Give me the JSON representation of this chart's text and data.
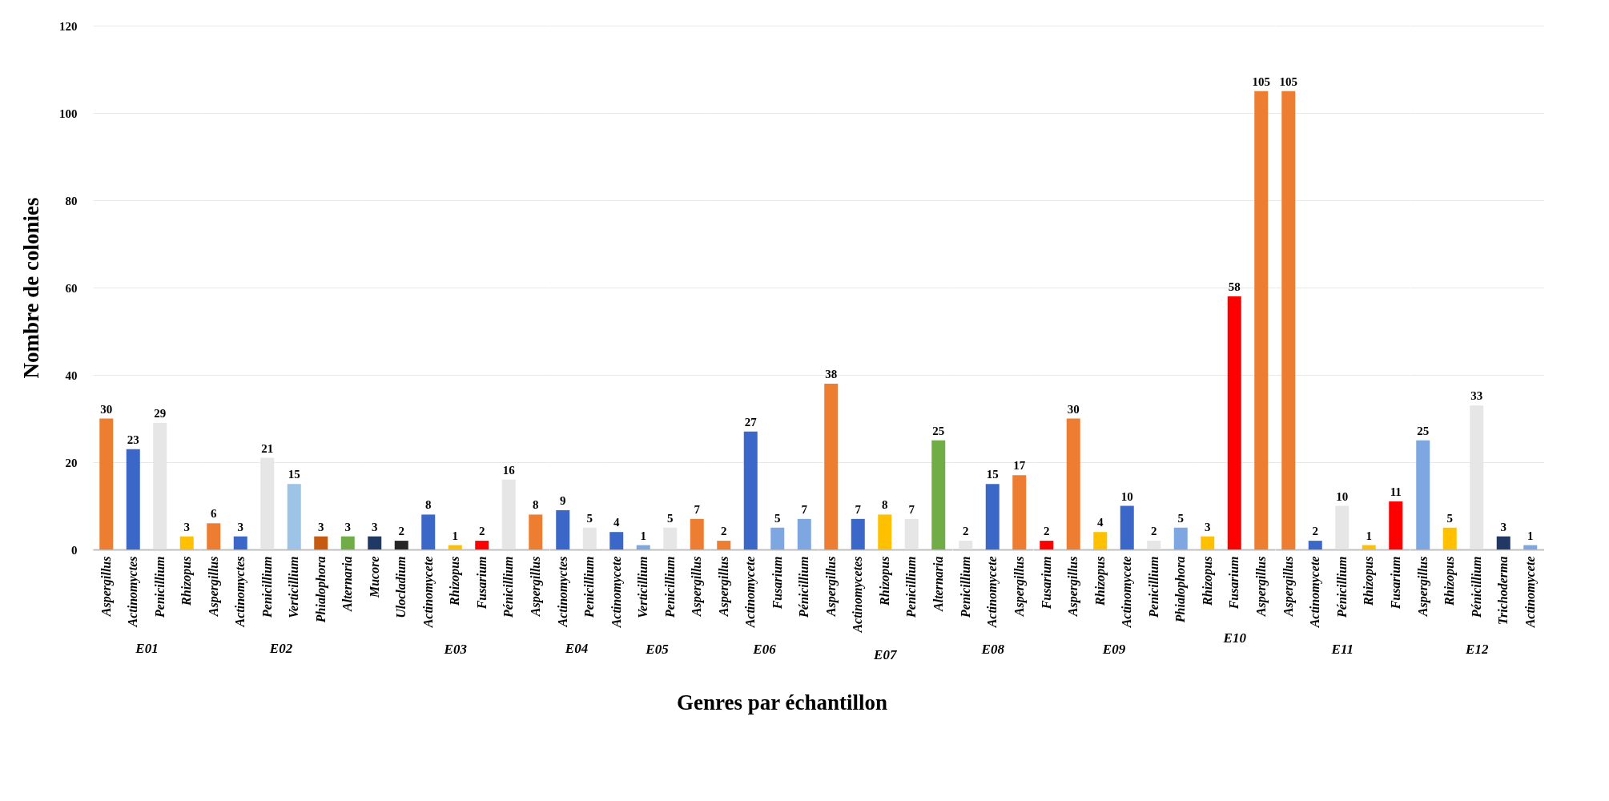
{
  "chart_data": [
    {
      "type": "bar",
      "ylabel": "Nombre de colonies",
      "xlabel": "E01",
      "categories": [
        "Aspergillus",
        "Actinomyctes",
        "Penicillium",
        "Rhizopus"
      ],
      "values": [
        30,
        23,
        29,
        3
      ],
      "colors": [
        "#ed7d31",
        "#3b67c9",
        "#e7e6e6",
        "#ffc000"
      ],
      "data_labels": true,
      "ylim": [
        0,
        120
      ],
      "yticks": [
        0,
        20,
        40,
        60,
        80,
        100,
        120
      ],
      "grid": "y",
      "annotations": [
        "Genres par échantillon"
      ]
    },
    {
      "type": "bar",
      "xlabel": "E02",
      "categories": [
        "Aspergillus",
        "Actinomyctes",
        "Penicillium",
        "Verticillium",
        "Phialophora",
        "Alternaria"
      ],
      "values": [
        6,
        3,
        21,
        15,
        3,
        3
      ],
      "colors": [
        "#ed7d31",
        "#3b67c9",
        "#e7e6e6",
        "#9dc3e6",
        "#c55a11",
        "#70ad47"
      ],
      "data_labels": true,
      "ylim": [
        0,
        120
      ],
      "yticks": [
        0,
        20,
        40,
        60,
        80,
        100,
        120
      ],
      "grid": "y",
      "tick_labels": "x"
    },
    {
      "type": "bar",
      "xlabel": "E03",
      "categories": [
        "Mucore",
        "Ulocladium",
        "Actinomycete",
        "Rhizopus",
        "Fusarium",
        "Pénicillium",
        "Aspergillus"
      ],
      "values": [
        3,
        2,
        8,
        1,
        2,
        16,
        8
      ],
      "colors": [
        "#1f3864",
        "#262626",
        "#3b67c9",
        "#ffc000",
        "#ff0000",
        "#e7e6e6",
        "#ed7d31"
      ],
      "data_labels": true,
      "ylim": [
        0,
        120
      ],
      "yticks": [
        0,
        20,
        40,
        60,
        80,
        100,
        120
      ],
      "grid": "y",
      "tick_labels": "x"
    },
    {
      "type": "bar",
      "xlabel": "E04",
      "categories": [
        "Actinomyctes",
        "Penicillium"
      ],
      "values": [
        9,
        5
      ],
      "colors": [
        "#3b67c9",
        "#e7e6e6"
      ],
      "data_labels": true,
      "ylim": [
        0,
        120
      ],
      "yticks": [
        0,
        20,
        40,
        60,
        80,
        100,
        120
      ],
      "grid": "y",
      "tick_labels": "x"
    },
    {
      "type": "bar",
      "xlabel": "E05",
      "categories": [
        "Actinomycete",
        "Verticillium",
        "Penicillium",
        "Aspergillus"
      ],
      "values": [
        4,
        1,
        5,
        7
      ],
      "colors": [
        "#3b67c9",
        "#7ea6e0",
        "#e7e6e6",
        "#ed7d31"
      ],
      "data_labels": true,
      "ylim": [
        0,
        120
      ],
      "yticks": [
        0,
        20,
        40,
        60,
        80,
        100,
        120
      ],
      "grid": "y",
      "tick_labels": "x"
    },
    {
      "type": "bar",
      "xlabel": "E06",
      "categories": [
        "Aspergillus",
        "Actinomycete",
        "Fusarium",
        "Pénicillium"
      ],
      "values": [
        2,
        27,
        5,
        7
      ],
      "colors": [
        "#ed7d31",
        "#3b67c9",
        "#7ea6e0",
        "#7ea6e0"
      ],
      "data_labels": true,
      "ylim": [
        0,
        120
      ],
      "yticks": [
        0,
        20,
        40,
        60,
        80,
        100,
        120
      ],
      "grid": "y",
      "tick_labels": "x"
    },
    {
      "type": "bar",
      "xlabel": "E07",
      "categories": [
        "Aspergillus",
        "Actinomycetes",
        "Rhizopus",
        "Penicillium",
        "Alternaria"
      ],
      "values": [
        38,
        7,
        8,
        7,
        25
      ],
      "colors": [
        "#ed7d31",
        "#3b67c9",
        "#ffc000",
        "#e7e6e6",
        "#70ad47"
      ],
      "data_labels": true,
      "ylim": [
        0,
        120
      ],
      "yticks": [
        0,
        20,
        40,
        60,
        80,
        100,
        120
      ],
      "grid": "y",
      "tick_labels": "x"
    },
    {
      "type": "bar",
      "xlabel": "E08",
      "categories": [
        "Penicillium",
        "Actinomycete",
        "Aspergillus"
      ],
      "values": [
        2,
        15,
        17
      ],
      "colors": [
        "#e7e6e6",
        "#3b67c9",
        "#ed7d31"
      ],
      "data_labels": true,
      "ylim": [
        0,
        120
      ],
      "yticks": [
        0,
        20,
        40,
        60,
        80,
        100,
        120
      ],
      "grid": "y",
      "tick_labels": "x"
    },
    {
      "type": "bar",
      "xlabel": "E09",
      "categories": [
        "Fusarium",
        "Aspergillus",
        "Rhizopus",
        "Actinomycete",
        "Penicillium",
        "Phialophora"
      ],
      "values": [
        2,
        30,
        4,
        10,
        2,
        5
      ],
      "colors": [
        "#ff0000",
        "#ed7d31",
        "#ffc000",
        "#3b67c9",
        "#e7e6e6",
        "#7ea6e0"
      ],
      "data_labels": true,
      "ylim": [
        0,
        120
      ],
      "yticks": [
        0,
        20,
        40,
        60,
        80,
        100,
        120
      ],
      "grid": "y",
      "tick_labels": "x"
    },
    {
      "type": "bar",
      "xlabel": "E10",
      "categories": [
        "Rhizopus",
        "Fusarium",
        "Aspergillus"
      ],
      "values": [
        3,
        58,
        105
      ],
      "colors": [
        "#ffc000",
        "#ff0000",
        "#ed7d31"
      ],
      "data_labels": true,
      "ylim": [
        0,
        120
      ],
      "yticks": [
        0,
        20,
        40,
        60,
        80,
        100,
        120
      ],
      "grid": "y",
      "tick_labels": "x"
    },
    {
      "type": "bar",
      "xlabel": "E11",
      "categories": [
        "Aspergillus",
        "Actinomycete",
        "Pénicillium",
        "Rhizopus",
        "Fusarium"
      ],
      "values": [
        105,
        2,
        10,
        1,
        11
      ],
      "colors": [
        "#ed7d31",
        "#3b67c9",
        "#e7e6e6",
        "#ffc000",
        "#ff0000"
      ],
      "data_labels": true,
      "ylim": [
        0,
        120
      ],
      "yticks": [
        0,
        20,
        40,
        60,
        80,
        100,
        120
      ],
      "grid": "y",
      "tick_labels": "x"
    },
    {
      "type": "bar",
      "xlabel": "E12",
      "categories": [
        "Aspergillus",
        "Rhizopus",
        "Pénicillium",
        "Trichoderma",
        "Actinomycete"
      ],
      "values": [
        25,
        5,
        33,
        3,
        1
      ],
      "colors": [
        "#7ea6e0",
        "#ffc000",
        "#e7e6e6",
        "#1f3864",
        "#7ea6e0"
      ],
      "data_labels": true,
      "ylim": [
        0,
        120
      ],
      "yticks": [
        0,
        20,
        40,
        60,
        80,
        100,
        120
      ],
      "grid": "y",
      "tick_labels": "x"
    }
  ]
}
